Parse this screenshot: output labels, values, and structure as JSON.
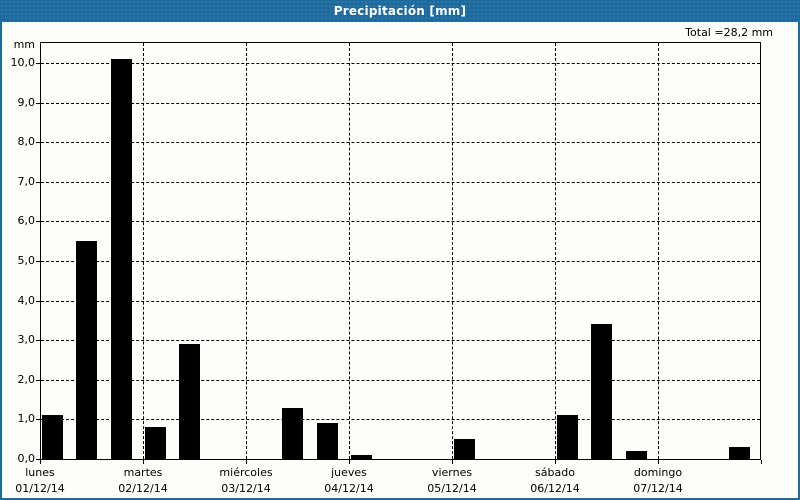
{
  "window": {
    "title": "Precipitación [mm]"
  },
  "colors": {
    "titlebar_bg": "#1d6a9e",
    "window_border": "#1d6a9e",
    "bar_fill": "#000000",
    "title_text": "#ffffff",
    "axis_text": "#000000",
    "grid_color": "#000000",
    "background": "#fdfdfa"
  },
  "chart_data": {
    "type": "bar",
    "title": "Precipitación [mm]",
    "ylabel": "mm",
    "total_label": "Total =28,2 mm",
    "total_value_mm": 28.2,
    "ylim": [
      0,
      10.55
    ],
    "grid": {
      "horizontal": true,
      "vertical": true,
      "style": "dashed"
    },
    "y_ticks": [
      {
        "value": 10,
        "label": "10,0"
      },
      {
        "value": 9,
        "label": "9,0"
      },
      {
        "value": 8,
        "label": "8,0"
      },
      {
        "value": 7,
        "label": "7,0"
      },
      {
        "value": 6,
        "label": "6,0"
      },
      {
        "value": 5,
        "label": "5,0"
      },
      {
        "value": 4,
        "label": "4,0"
      },
      {
        "value": 3,
        "label": "3,0"
      },
      {
        "value": 2,
        "label": "2,0"
      },
      {
        "value": 1,
        "label": "1,0"
      },
      {
        "value": 0,
        "label": "0,0"
      }
    ],
    "days": [
      {
        "name": "lunes",
        "date": "01/12/14"
      },
      {
        "name": "martes",
        "date": "02/12/14"
      },
      {
        "name": "miércoles",
        "date": "03/12/14"
      },
      {
        "name": "jueves",
        "date": "04/12/14"
      },
      {
        "name": "viernes",
        "date": "05/12/14"
      },
      {
        "name": "sábado",
        "date": "06/12/14"
      },
      {
        "name": "domingo",
        "date": "07/12/14"
      }
    ],
    "bars": [
      {
        "day": 0,
        "slot": 0,
        "value": 1.1
      },
      {
        "day": 0,
        "slot": 1,
        "value": 5.5
      },
      {
        "day": 0,
        "slot": 2,
        "value": 10.1
      },
      {
        "day": 1,
        "slot": 0,
        "value": 0.8
      },
      {
        "day": 1,
        "slot": 1,
        "value": 2.9
      },
      {
        "day": 2,
        "slot": 1,
        "value": 1.3
      },
      {
        "day": 2,
        "slot": 2,
        "value": 0.9
      },
      {
        "day": 3,
        "slot": 0,
        "value": 0.1
      },
      {
        "day": 4,
        "slot": 0,
        "value": 0.5
      },
      {
        "day": 5,
        "slot": 0,
        "value": 1.1
      },
      {
        "day": 5,
        "slot": 1,
        "value": 3.4
      },
      {
        "day": 5,
        "slot": 2,
        "value": 0.2
      },
      {
        "day": 6,
        "slot": 2,
        "value": 0.3
      }
    ]
  }
}
